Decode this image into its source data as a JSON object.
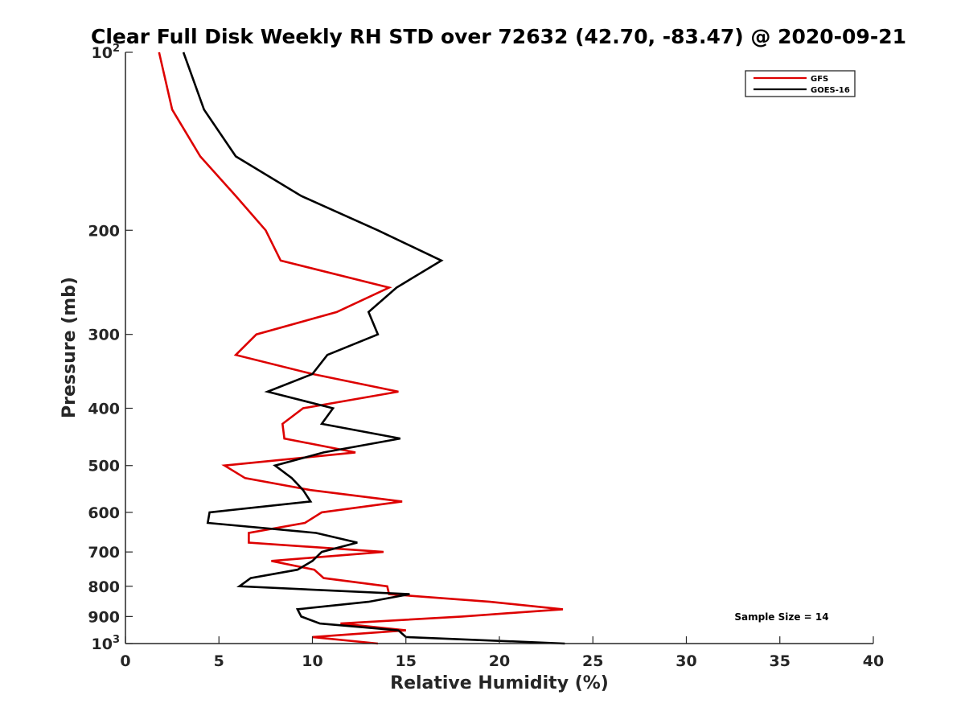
{
  "chart_data": {
    "type": "line",
    "title": "Clear Full Disk Weekly RH STD over 72632 (42.70, -83.47) @ 2020-09-21",
    "xlabel": "Relative Humidity (%)",
    "ylabel": "Pressure (mb)",
    "xlim": [
      0,
      40
    ],
    "ylim": [
      100,
      1000
    ],
    "y_scale": "log",
    "y_reversed": true,
    "x_ticks": [
      "0",
      "5",
      "10",
      "15",
      "20",
      "25",
      "30",
      "35",
      "40"
    ],
    "y_ticks": [
      {
        "value": 100,
        "label": "10",
        "sup": "2"
      },
      {
        "value": 200,
        "label": "200",
        "sup": ""
      },
      {
        "value": 300,
        "label": "300",
        "sup": ""
      },
      {
        "value": 400,
        "label": "400",
        "sup": ""
      },
      {
        "value": 500,
        "label": "500",
        "sup": ""
      },
      {
        "value": 600,
        "label": "600",
        "sup": ""
      },
      {
        "value": 700,
        "label": "700",
        "sup": ""
      },
      {
        "value": 800,
        "label": "800",
        "sup": ""
      },
      {
        "value": 900,
        "label": "900",
        "sup": ""
      },
      {
        "value": 1000,
        "label": "10",
        "sup": "3"
      }
    ],
    "legend_position": "top-right",
    "grid": false,
    "series": [
      {
        "name": "GFS",
        "color": "#dd0000",
        "points": [
          [
            1.8,
            100
          ],
          [
            2.5,
            125
          ],
          [
            4.0,
            150
          ],
          [
            5.9,
            175
          ],
          [
            7.5,
            200
          ],
          [
            8.3,
            225
          ],
          [
            14.1,
            250
          ],
          [
            11.3,
            275
          ],
          [
            7.0,
            300
          ],
          [
            5.9,
            325
          ],
          [
            10.0,
            350
          ],
          [
            14.6,
            375
          ],
          [
            9.5,
            400
          ],
          [
            8.4,
            425
          ],
          [
            8.5,
            450
          ],
          [
            12.3,
            475
          ],
          [
            5.3,
            500
          ],
          [
            6.4,
            525
          ],
          [
            9.9,
            550
          ],
          [
            14.8,
            575
          ],
          [
            10.5,
            600
          ],
          [
            9.6,
            625
          ],
          [
            6.6,
            650
          ],
          [
            6.6,
            675
          ],
          [
            13.8,
            700
          ],
          [
            7.8,
            725
          ],
          [
            10.1,
            750
          ],
          [
            10.6,
            775
          ],
          [
            14.0,
            800
          ],
          [
            14.1,
            825
          ],
          [
            19.5,
            850
          ],
          [
            23.4,
            875
          ],
          [
            18.0,
            900
          ],
          [
            11.5,
            925
          ],
          [
            15.0,
            950
          ],
          [
            10.0,
            975
          ],
          [
            13.5,
            1000
          ]
        ]
      },
      {
        "name": "GOES-16",
        "color": "#000000",
        "points": [
          [
            3.1,
            100
          ],
          [
            4.2,
            125
          ],
          [
            5.9,
            150
          ],
          [
            9.4,
            175
          ],
          [
            13.5,
            200
          ],
          [
            16.9,
            225
          ],
          [
            14.5,
            250
          ],
          [
            13.0,
            275
          ],
          [
            13.5,
            300
          ],
          [
            10.8,
            325
          ],
          [
            10.0,
            350
          ],
          [
            7.6,
            375
          ],
          [
            11.1,
            400
          ],
          [
            10.5,
            425
          ],
          [
            14.7,
            450
          ],
          [
            10.6,
            475
          ],
          [
            8.0,
            500
          ],
          [
            8.9,
            525
          ],
          [
            9.5,
            550
          ],
          [
            9.9,
            575
          ],
          [
            4.5,
            600
          ],
          [
            4.4,
            625
          ],
          [
            10.2,
            650
          ],
          [
            12.4,
            675
          ],
          [
            10.5,
            700
          ],
          [
            10.0,
            725
          ],
          [
            9.2,
            750
          ],
          [
            6.7,
            775
          ],
          [
            6.1,
            800
          ],
          [
            15.2,
            825
          ],
          [
            13.0,
            850
          ],
          [
            9.2,
            875
          ],
          [
            9.4,
            900
          ],
          [
            10.4,
            925
          ],
          [
            14.6,
            950
          ],
          [
            15.0,
            975
          ],
          [
            23.5,
            1000
          ]
        ]
      }
    ],
    "annotation": "Sample Size = 14"
  },
  "colors": {
    "gfs": "#dd0000",
    "goes": "#000000",
    "axis": "#262626",
    "background": "#ffffff"
  }
}
